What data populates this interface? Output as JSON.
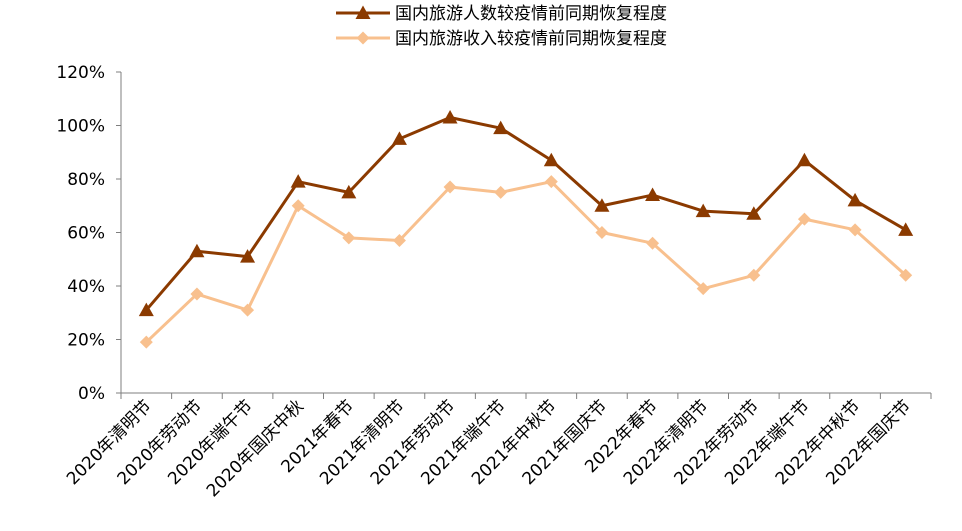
{
  "chart_data": {
    "type": "line",
    "categories": [
      "2020年清明节",
      "2020年劳动节",
      "2020年端午节",
      "2020年国庆中秋",
      "2021年春节",
      "2021年清明节",
      "2021年劳动节",
      "2021年端午节",
      "2021年中秋节",
      "2021年国庆节",
      "2022年春节",
      "2022年清明节",
      "2022年劳动节",
      "2022年端午节",
      "2022年中秋节",
      "2022年国庆节"
    ],
    "series": [
      {
        "name": "国内旅游人数较疫情前同期恢复程度",
        "color": "#8B3A00",
        "marker": "triangle",
        "values": [
          0.31,
          0.53,
          0.51,
          0.79,
          0.75,
          0.95,
          1.03,
          0.99,
          0.87,
          0.7,
          0.74,
          0.68,
          0.67,
          0.87,
          0.72,
          0.61
        ]
      },
      {
        "name": "国内旅游收入较疫情前同期恢复程度",
        "color": "#F8C08E",
        "marker": "diamond",
        "values": [
          0.19,
          0.37,
          0.31,
          0.7,
          0.58,
          0.57,
          0.77,
          0.75,
          0.79,
          0.6,
          0.56,
          0.39,
          0.44,
          0.65,
          0.61,
          0.44
        ]
      }
    ],
    "ylim": [
      0,
      1.2
    ],
    "yticks": [
      "0%",
      "20%",
      "40%",
      "60%",
      "80%",
      "100%",
      "120%"
    ],
    "grid": false,
    "legend": "top-center"
  }
}
